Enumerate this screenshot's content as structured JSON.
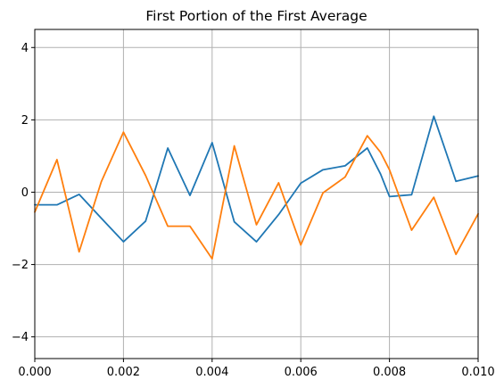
{
  "chart_data": {
    "type": "line",
    "title": "First Portion of the First Average",
    "xlabel": "",
    "ylabel": "",
    "xlim": [
      0,
      0.01
    ],
    "ylim": [
      -4.6,
      4.5
    ],
    "grid": true,
    "x": [
      0.0,
      0.0005,
      0.001,
      0.0015,
      0.002,
      0.0025,
      0.003,
      0.0035,
      0.004,
      0.0045,
      0.005,
      0.0055,
      0.006,
      0.0065,
      0.007,
      0.0075,
      0.0078,
      0.008,
      0.0085,
      0.009,
      0.0095,
      0.01
    ],
    "series": [
      {
        "color": "#1f77b4",
        "values": [
          -0.35,
          -0.35,
          -0.06,
          -0.72,
          -1.37,
          -0.8,
          1.22,
          -0.09,
          1.37,
          -0.82,
          -1.37,
          -0.62,
          0.25,
          0.62,
          0.73,
          1.22,
          0.5,
          -0.12,
          -0.07,
          2.1,
          0.3,
          0.45
        ]
      },
      {
        "color": "#ff7f0e",
        "values": [
          -0.55,
          0.9,
          -1.65,
          0.29,
          1.66,
          0.46,
          -0.94,
          -0.94,
          -1.84,
          1.28,
          -0.9,
          0.26,
          -1.46,
          -0.02,
          0.42,
          1.56,
          1.1,
          0.62,
          -1.05,
          -0.14,
          -1.72,
          -0.6
        ]
      }
    ],
    "xticks": [
      "0.000",
      "0.002",
      "0.004",
      "0.006",
      "0.008",
      "0.010"
    ],
    "xtick_values": [
      0.0,
      0.002,
      0.004,
      0.006,
      0.008,
      0.01
    ],
    "yticks": [
      "−4",
      "−2",
      "0",
      "2",
      "4"
    ],
    "ytick_values": [
      -4,
      -2,
      0,
      2,
      4
    ]
  }
}
